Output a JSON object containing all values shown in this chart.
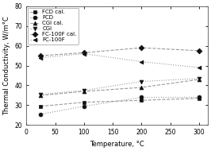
{
  "xlabel": "Temperature, °C",
  "ylabel": "Thermal Conductivity, W/m°C",
  "xlim": [
    10,
    315
  ],
  "ylim": [
    20,
    80
  ],
  "xticks": [
    0,
    50,
    100,
    150,
    200,
    250,
    300
  ],
  "yticks": [
    20,
    30,
    40,
    50,
    60,
    70,
    80
  ],
  "temperature": [
    25,
    100,
    200,
    300
  ],
  "series": [
    {
      "label": "FCD cal.",
      "values": [
        29.5,
        31.5,
        32.5,
        33.5
      ],
      "linestyle": "--",
      "marker": "s",
      "color": "#999999",
      "markerfacecolor": "#111111",
      "markeredgecolor": "#111111",
      "linewidth": 0.8,
      "markersize": 3.5
    },
    {
      "label": "FCD",
      "values": [
        25.5,
        29.5,
        34.0,
        34.0
      ],
      "linestyle": ":",
      "marker": "o",
      "color": "#999999",
      "markerfacecolor": "#111111",
      "markeredgecolor": "#111111",
      "linewidth": 0.8,
      "markersize": 3.5
    },
    {
      "label": "CGI cal.",
      "values": [
        35.0,
        37.0,
        39.0,
        43.0
      ],
      "linestyle": "--",
      "marker": "^",
      "color": "#999999",
      "markerfacecolor": "#111111",
      "markeredgecolor": "#111111",
      "linewidth": 0.8,
      "markersize": 3.5
    },
    {
      "label": "CGI",
      "values": [
        35.5,
        37.5,
        42.0,
        43.5
      ],
      "linestyle": ":",
      "marker": "v",
      "color": "#999999",
      "markerfacecolor": "#111111",
      "markeredgecolor": "#111111",
      "linewidth": 0.8,
      "markersize": 3.5
    },
    {
      "label": "FC-100F cal.",
      "values": [
        55.0,
        56.5,
        59.0,
        57.5
      ],
      "linestyle": "--",
      "marker": "D",
      "color": "#999999",
      "markerfacecolor": "#111111",
      "markeredgecolor": "#111111",
      "linewidth": 0.8,
      "markersize": 3.5
    },
    {
      "label": "FC-100F",
      "values": [
        54.0,
        56.0,
        52.0,
        49.0
      ],
      "linestyle": ":",
      "marker": "<",
      "color": "#999999",
      "markerfacecolor": "#111111",
      "markeredgecolor": "#111111",
      "linewidth": 0.8,
      "markersize": 3.5
    }
  ],
  "background_color": "#ffffff",
  "legend_fontsize": 5.0,
  "axis_fontsize": 6.0,
  "tick_fontsize": 5.5
}
